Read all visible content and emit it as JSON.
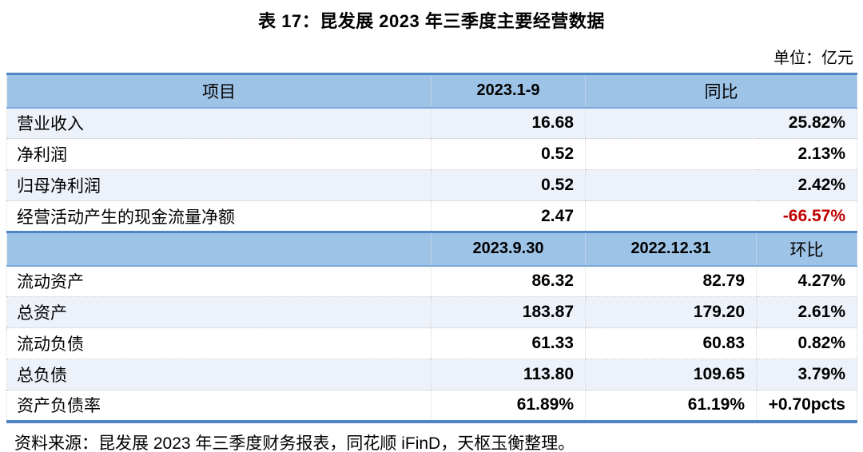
{
  "page": {
    "title": "表 17：昆发展 2023 年三季度主要经营数据",
    "unit_label": "单位：亿元",
    "source_note": "资料来源：昆发展 2023 年三季度财务报表，同花顺 iFinD，天枢玉衡整理。"
  },
  "table": {
    "section1": {
      "col_item": "项目",
      "col_period": "2023.1-9",
      "col_yoy": "同比",
      "rows": [
        {
          "label": "营业收入",
          "value": "16.68",
          "yoy": "25.82%"
        },
        {
          "label": "净利润",
          "value": "0.52",
          "yoy": "2.13%"
        },
        {
          "label": "归母净利润",
          "value": "0.52",
          "yoy": "2.42%"
        },
        {
          "label": "经营活动产生的现金流量净额",
          "value": "2.47",
          "yoy": "-66.57%"
        }
      ]
    },
    "section2": {
      "col_item": "",
      "col_date1": "2023.9.30",
      "col_date2": "2022.12.31",
      "col_qoq": "环比",
      "rows": [
        {
          "label": "流动资产",
          "v1": "86.32",
          "v2": "82.79",
          "qoq": "4.27%"
        },
        {
          "label": "总资产",
          "v1": "183.87",
          "v2": "179.20",
          "qoq": "2.61%"
        },
        {
          "label": "流动负债",
          "v1": "61.33",
          "v2": "60.83",
          "qoq": "0.82%"
        },
        {
          "label": "总负债",
          "v1": "113.80",
          "v2": "109.65",
          "qoq": "3.79%"
        },
        {
          "label": "资产负债率",
          "v1": "61.89%",
          "v2": "61.19%",
          "qoq": "+0.70pcts"
        }
      ]
    }
  },
  "colors": {
    "header_fill": "#9DC3E6",
    "band_fill": "#EDF2FA",
    "accent_border": "#4E86C6",
    "negative_value": "#C00000"
  }
}
